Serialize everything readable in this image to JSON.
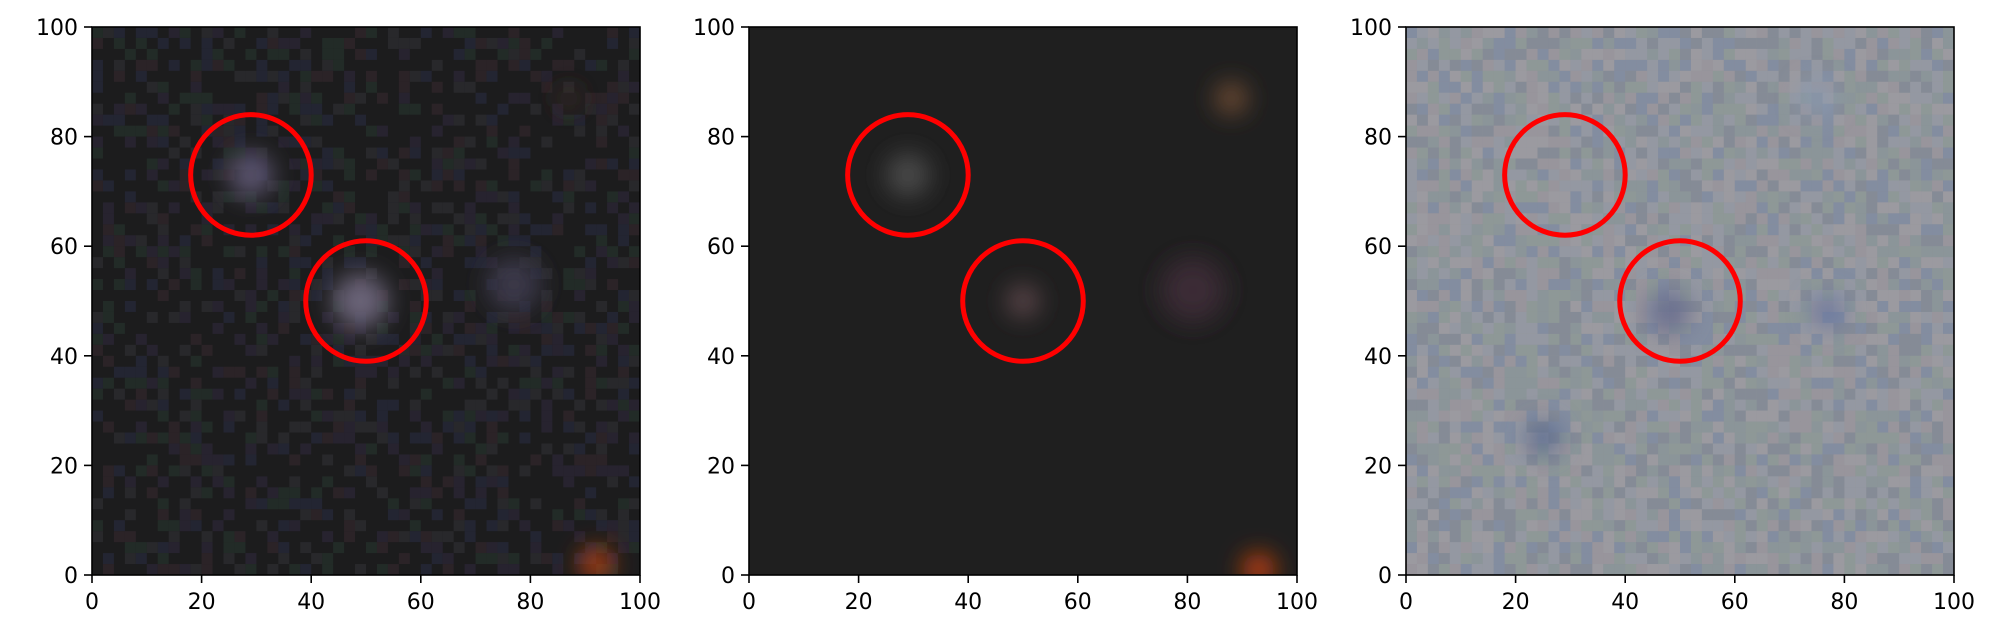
{
  "chart_data": [
    {
      "type": "image",
      "panel": "left",
      "xlim": [
        0,
        100
      ],
      "ylim": [
        0,
        100
      ],
      "xticks": [
        0,
        20,
        40,
        60,
        80,
        100
      ],
      "yticks": [
        0,
        20,
        40,
        60,
        80,
        100
      ],
      "background": "#1c1c1d",
      "noise": "#2a2a3a",
      "sources": [
        {
          "x": 29,
          "y": 73,
          "r": 4,
          "color": "#5c5470"
        },
        {
          "x": 49,
          "y": 50,
          "r": 5,
          "color": "#6a6478"
        },
        {
          "x": 77,
          "y": 53,
          "r": 5,
          "color": "#3a3848"
        },
        {
          "x": 92,
          "y": 2,
          "r": 3,
          "color": "#b04018"
        },
        {
          "x": 87,
          "y": 87,
          "r": 2,
          "color": "#3c2a26"
        }
      ],
      "circles": [
        {
          "x": 29,
          "y": 73,
          "r": 11,
          "color": "#ff0000"
        },
        {
          "x": 50,
          "y": 50,
          "r": 11,
          "color": "#ff0000"
        }
      ]
    },
    {
      "type": "image",
      "panel": "middle",
      "xlim": [
        0,
        100
      ],
      "ylim": [
        0,
        100
      ],
      "xticks": [
        0,
        20,
        40,
        60,
        80,
        100
      ],
      "yticks": [
        0,
        20,
        40,
        60,
        80,
        100
      ],
      "background": "#1f1f1f",
      "noise": "",
      "sources": [
        {
          "x": 29,
          "y": 73,
          "r": 4,
          "color": "#4a4a4a"
        },
        {
          "x": 50,
          "y": 50,
          "r": 3,
          "color": "#5a4448"
        },
        {
          "x": 81,
          "y": 52,
          "r": 6,
          "color": "#3a2a34"
        },
        {
          "x": 88,
          "y": 87,
          "r": 3,
          "color": "#6b4a30"
        },
        {
          "x": 93,
          "y": 1,
          "r": 3,
          "color": "#c04010"
        }
      ],
      "circles": [
        {
          "x": 29,
          "y": 73,
          "r": 11,
          "color": "#ff0000"
        },
        {
          "x": 50,
          "y": 50,
          "r": 11,
          "color": "#ff0000"
        }
      ]
    },
    {
      "type": "image",
      "panel": "right",
      "xlim": [
        0,
        100
      ],
      "ylim": [
        0,
        100
      ],
      "xticks": [
        0,
        20,
        40,
        60,
        80,
        100
      ],
      "yticks": [
        0,
        20,
        40,
        60,
        80,
        100
      ],
      "background": "#8d8f97",
      "noise": "#7a88a0",
      "sources": [
        {
          "x": 25,
          "y": 25,
          "r": 3,
          "color": "#5a6a90"
        },
        {
          "x": 48,
          "y": 48,
          "r": 4,
          "color": "#6a7090"
        },
        {
          "x": 77,
          "y": 48,
          "r": 3,
          "color": "#6a78a0"
        },
        {
          "x": 75,
          "y": 87,
          "r": 3,
          "color": "#8a9ab0"
        }
      ],
      "circles": [
        {
          "x": 29,
          "y": 73,
          "r": 11,
          "color": "#ff0000"
        },
        {
          "x": 50,
          "y": 50,
          "r": 11,
          "color": "#ff0000"
        }
      ]
    }
  ]
}
